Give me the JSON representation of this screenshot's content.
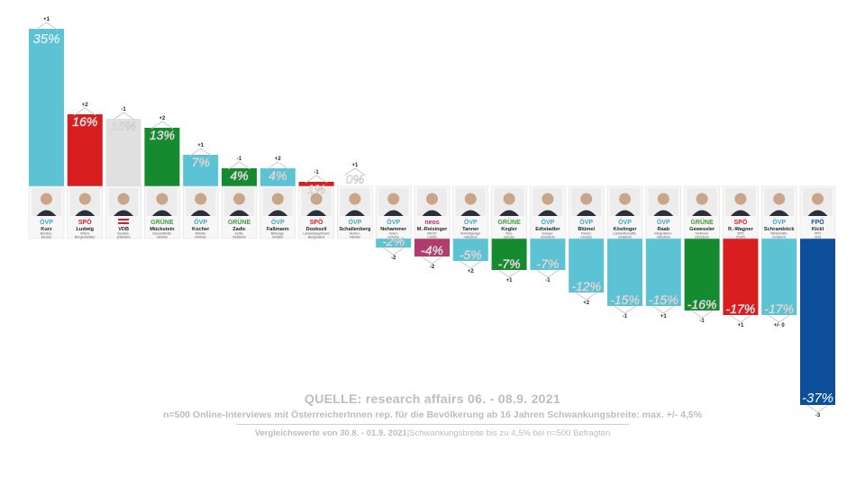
{
  "chart_data": {
    "type": "bar",
    "categories": [
      "Kurz",
      "Ludwig",
      "VDB",
      "Mückstein",
      "Kocher",
      "Zadic",
      "Faßmann",
      "Doskozil",
      "Schallenberg",
      "Nehammer",
      "M.-Reisinger",
      "Tanner",
      "Kogler",
      "Edtstadler",
      "Blümel",
      "Köstinger",
      "Raab",
      "Gewessler",
      "R.-Wagner",
      "Schramböck",
      "Kickl"
    ],
    "values": [
      35,
      16,
      15,
      13,
      7,
      4,
      4,
      1,
      0,
      -2,
      -4,
      -5,
      -7,
      -7,
      -12,
      -15,
      -15,
      -16,
      -17,
      -17,
      -37
    ],
    "value_labels": [
      "35%",
      "16%",
      "15%",
      "13%",
      "7%",
      "4%",
      "4%",
      "1%",
      "0%",
      "-2%",
      "-4%",
      "-5%",
      "-7%",
      "-7%",
      "-12%",
      "-15%",
      "-15%",
      "-16%",
      "-17%",
      "-17%",
      "-37%"
    ],
    "changes": [
      "+1",
      "+2",
      "-1",
      "+2",
      "+1",
      "-1",
      "+2",
      "-1",
      "+1",
      "-2",
      "-2",
      "+2",
      "+1",
      "-1",
      "+2",
      "-1",
      "+1",
      "-1",
      "+1",
      "+/- 0",
      "-3"
    ],
    "roles": [
      [
        "Bundes-",
        "kanzler"
      ],
      [
        "Wiens",
        "Bürgermeister"
      ],
      [
        "Bundes-",
        "präsident"
      ],
      [
        "Gesundheits-",
        "minister"
      ],
      [
        "Arbeits-",
        "minister"
      ],
      [
        "Justiz-",
        "ministerin"
      ],
      [
        "Bildungs-",
        "minister"
      ],
      [
        "Landeshauptmann",
        "Burgenland"
      ],
      [
        "Außen-",
        "minister"
      ],
      [
        "Innen-",
        "minister"
      ],
      [
        "NEOS",
        "Chefin"
      ],
      [
        "Verteidigungs-",
        "ministerin"
      ],
      [
        "Vize-",
        "kanzler"
      ],
      [
        "Europa-",
        "ministerin"
      ],
      [
        "Finanz-",
        "minister"
      ],
      [
        "Landwirtschafts-",
        "ministerin"
      ],
      [
        "Integrations-",
        "ministerin"
      ],
      [
        "Verkehrs-",
        "ministerin"
      ],
      [
        "SPÖ",
        "Chefin"
      ],
      [
        "Wirtschafts-",
        "ministerin"
      ],
      [
        "FPÖ",
        "Chef"
      ]
    ],
    "parties": [
      "ÖVP",
      "SPÖ",
      "",
      "GRÜNE",
      "ÖVP",
      "GRÜNE",
      "ÖVP",
      "SPÖ",
      "ÖVP",
      "ÖVP",
      "neos",
      "ÖVP",
      "GRÜNE",
      "ÖVP",
      "ÖVP",
      "ÖVP",
      "ÖVP",
      "GRÜNE",
      "SPÖ",
      "ÖVP",
      "FPÖ"
    ],
    "colors": [
      "#5bc3d4",
      "#d81e1e",
      "#e0e0e0",
      "#168a2e",
      "#5bc3d4",
      "#168a2e",
      "#5bc3d4",
      "#d81e1e",
      "#5bc3d4",
      "#5bc3d4",
      "#b33a6e",
      "#5bc3d4",
      "#168a2e",
      "#5bc3d4",
      "#5bc3d4",
      "#5bc3d4",
      "#5bc3d4",
      "#168a2e",
      "#d81e1e",
      "#5bc3d4",
      "#0d4f9a"
    ],
    "party_colors": {
      "ÖVP": "#3aa7c4",
      "SPÖ": "#d81e1e",
      "GRÜNE": "#3e9e3a",
      "neos": "#d6226a",
      "FPÖ": "#1b4f9c"
    },
    "ylim": [
      -37,
      35
    ]
  },
  "source": {
    "title": "QUELLE: research affairs  06. - 08.9. 2021",
    "line1": "n=500 Online-Interviews mit ÖsterreicherInnen rep. für die Bevölkerung ab 16 Jahren  Schwankungsbreite: max. +/- 4,5%",
    "line2_bold": "Vergleichswerte von 30.8. - 01.9. 2021",
    "line2_rest": "|Schwankungsbreite bis zu 4,5% bei n=500 Befragten"
  }
}
